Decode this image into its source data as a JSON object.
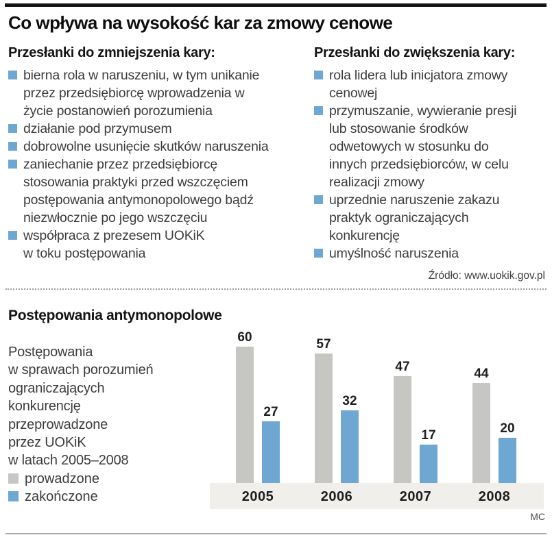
{
  "page": {
    "title": "Co wpływa na wysokość kar za zmowy cenowe",
    "credit": "MC"
  },
  "mitigating": {
    "heading": "Przesłanki do zmniejszenia kary:",
    "items": [
      "bierna rola w naruszeniu, w tym unikanie\nprzez przedsiębiorcę wprowadzenia w\nżycie postanowień porozumienia",
      "działanie pod przymusem",
      "dobrowolne usunięcie skutków naruszenia",
      "zaniechanie przez przedsiębiorcę\nstosowania praktyki przed wszczęciem\npostępowania antymonopolowego bądź\nniezwłocznie po jego wszczęciu",
      "współpraca z prezesem UOKiK\nw toku postępowania"
    ]
  },
  "aggravating": {
    "heading": "Przesłanki do zwiększenia kary:",
    "items": [
      "rola lidera lub inicjatora zmowy\ncenowej",
      "przymuszanie, wywieranie presji\nlub stosowanie środków\nodwetowych w stosunku do\ninnych przedsiębiorców, w celu\nrealizacji zmowy",
      "uprzednie naruszenie zakazu\npraktyk ograniczających\nkonkurencję",
      "umyślność naruszenia"
    ]
  },
  "source_note": "Źródło: www.uokik.gov.pl",
  "chart": {
    "heading": "Postępowania antymonopolowe",
    "description": "Postępowania\nw sprawach porozumień\nograniczających\nkonkurencję\nprzeprowadzone\nprzez UOKiK\nw latach 2005–2008"
  },
  "chart_data": {
    "type": "bar",
    "title": "Postępowania antymonopolowe",
    "categories": [
      "2005",
      "2006",
      "2007",
      "2008"
    ],
    "series": [
      {
        "name": "prowadzone",
        "values": [
          60,
          57,
          47,
          44
        ],
        "color": "#c6c7c3"
      },
      {
        "name": "zakończone",
        "values": [
          27,
          32,
          17,
          20
        ],
        "color": "#6fa7d3"
      }
    ],
    "xlabel": "",
    "ylabel": "",
    "ylim": [
      0,
      65
    ],
    "value_labels": true,
    "grid": false,
    "legend_position": "left",
    "colors": {
      "bullet_blue": "#6fa7d3",
      "bar_gray": "#c6c7c3",
      "bar_blue": "#6fa7d3",
      "axis_band": "#f0efeb"
    }
  }
}
